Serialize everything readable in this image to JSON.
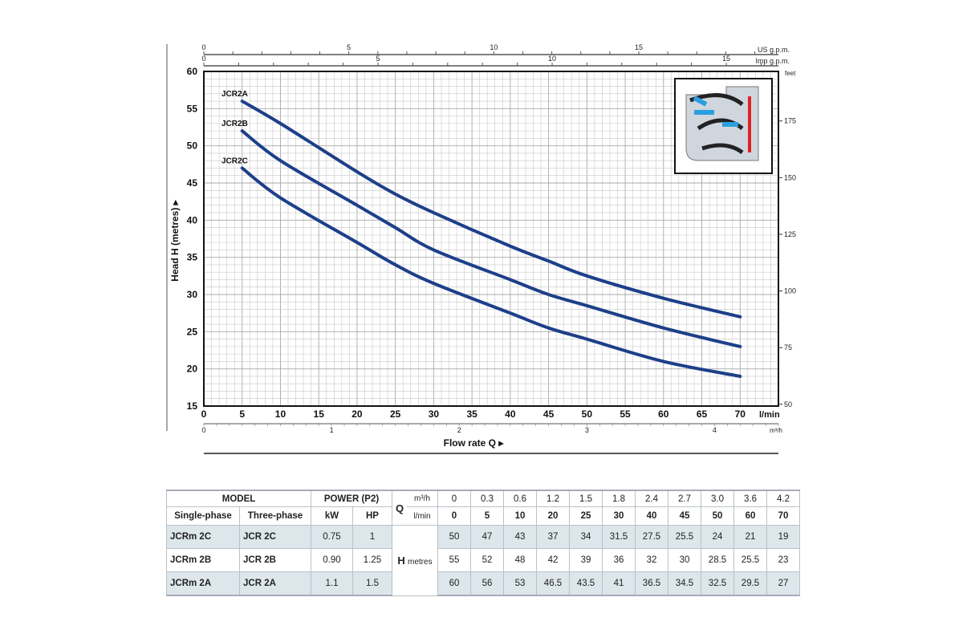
{
  "chart_data": {
    "type": "line",
    "title": "",
    "xlabel": "Flow rate Q",
    "x_unit": "l/min",
    "ylabel": "Head H (metres)",
    "xlim": [
      0,
      75
    ],
    "ylim": [
      15,
      60
    ],
    "x_ticks": [
      0,
      5,
      10,
      15,
      20,
      25,
      30,
      35,
      40,
      45,
      50,
      55,
      60,
      65,
      70
    ],
    "y_ticks": [
      15,
      20,
      25,
      30,
      35,
      40,
      45,
      50,
      55,
      60
    ],
    "grid": true,
    "secondary_axes": {
      "top_us": {
        "label": "US g.p.m.",
        "ticks": [
          0,
          5,
          10,
          15
        ]
      },
      "top_imp": {
        "label": "Imp g.p.m.",
        "ticks": [
          0,
          5,
          10,
          15
        ]
      },
      "right_feet": {
        "label": "feet",
        "ticks": [
          50,
          75,
          100,
          125,
          150,
          175
        ]
      },
      "bottom_m3h": {
        "label": "m³/h",
        "ticks": [
          0,
          1,
          2,
          3,
          4
        ]
      }
    },
    "x": [
      5,
      10,
      20,
      25,
      30,
      40,
      45,
      50,
      60,
      70
    ],
    "series": [
      {
        "name": "JCR2A",
        "values": [
          56,
          53,
          46.5,
          43.5,
          41,
          36.5,
          34.5,
          32.5,
          29.5,
          27
        ]
      },
      {
        "name": "JCR2B",
        "values": [
          52,
          48,
          42,
          39,
          36,
          32,
          30,
          28.5,
          25.5,
          23
        ]
      },
      {
        "name": "JCR2C",
        "values": [
          47,
          43,
          37,
          34,
          31.5,
          27.5,
          25.5,
          24,
          21,
          19
        ]
      }
    ],
    "color": "#1d3f8a"
  },
  "table": {
    "model": "MODEL",
    "power": "POWER (P2)",
    "single": "Single-phase",
    "three": "Three-phase",
    "kw": "kW",
    "hp": "HP",
    "q": "Q",
    "h": "H",
    "metres": "metres",
    "m3h": "m³/h",
    "lmin": "l/min",
    "q_m3h": [
      "0",
      "0.3",
      "0.6",
      "1.2",
      "1.5",
      "1.8",
      "2.4",
      "2.7",
      "3.0",
      "3.6",
      "4.2"
    ],
    "q_lmin": [
      "0",
      "5",
      "10",
      "20",
      "25",
      "30",
      "40",
      "45",
      "50",
      "60",
      "70"
    ],
    "rows": [
      {
        "single": "JCRm 2C",
        "three": "JCR 2C",
        "kw": "0.75",
        "hp": "1",
        "h": [
          "50",
          "47",
          "43",
          "37",
          "34",
          "31.5",
          "27.5",
          "25.5",
          "24",
          "21",
          "19"
        ]
      },
      {
        "single": "JCRm 2B",
        "three": "JCR 2B",
        "kw": "0.90",
        "hp": "1.25",
        "h": [
          "55",
          "52",
          "48",
          "42",
          "39",
          "36",
          "32",
          "30",
          "28.5",
          "25.5",
          "23"
        ]
      },
      {
        "single": "JCRm 2A",
        "three": "JCR 2A",
        "kw": "1.1",
        "hp": "1.5",
        "h": [
          "60",
          "56",
          "53",
          "46.5",
          "43.5",
          "41",
          "36.5",
          "34.5",
          "32.5",
          "29.5",
          "27"
        ]
      }
    ]
  }
}
